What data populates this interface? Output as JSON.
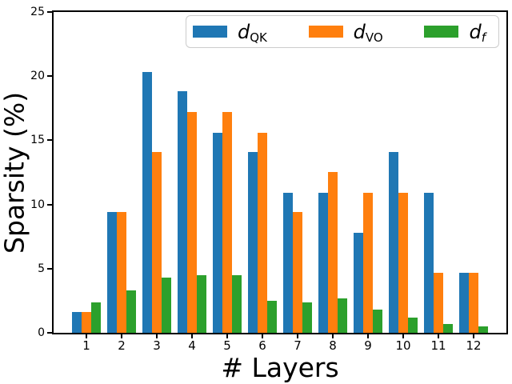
{
  "chart_data": {
    "type": "bar",
    "title": "",
    "xlabel": "# Layers",
    "ylabel": "Sparsity (%)",
    "categories": [
      "1",
      "2",
      "3",
      "4",
      "5",
      "6",
      "7",
      "8",
      "9",
      "10",
      "11",
      "12"
    ],
    "series": [
      {
        "name": "d_QK",
        "label_main": "d",
        "label_sub": "QK",
        "sub_italic": false,
        "color": "#1f77b4",
        "values": [
          1.6,
          9.4,
          20.3,
          18.8,
          15.6,
          14.1,
          10.9,
          10.9,
          7.8,
          14.1,
          10.9,
          4.7
        ]
      },
      {
        "name": "d_VO",
        "label_main": "d",
        "label_sub": "VO",
        "sub_italic": false,
        "color": "#ff7f0e",
        "values": [
          1.6,
          9.4,
          14.1,
          17.2,
          17.2,
          15.6,
          9.4,
          12.5,
          10.9,
          10.9,
          4.7,
          4.7
        ]
      },
      {
        "name": "d_f",
        "label_main": "d",
        "label_sub": "f",
        "sub_italic": true,
        "color": "#2ca02c",
        "values": [
          2.4,
          3.3,
          4.3,
          4.5,
          4.5,
          2.5,
          2.4,
          2.7,
          1.8,
          1.2,
          0.7,
          0.5
        ]
      }
    ],
    "ylim": [
      0,
      25
    ],
    "yticks": [
      0,
      5,
      10,
      15,
      20,
      25
    ],
    "grid": false,
    "legend_position": "upper-right-inside"
  }
}
